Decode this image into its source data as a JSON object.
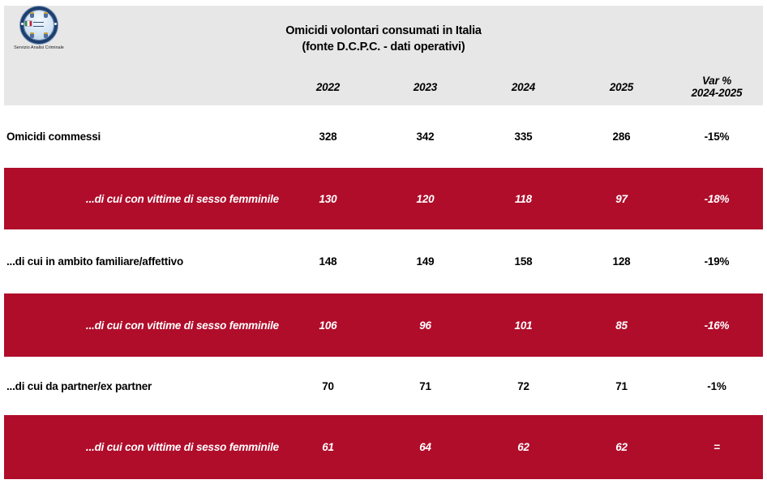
{
  "logo": {
    "caption": "Servizio Analisi Criminale"
  },
  "header": {
    "title_line1": "Omicidi volontari consumati in Italia",
    "title_line2": "(fonte D.C.P.C. - dati operativi)"
  },
  "table": {
    "columns": [
      "2022",
      "2023",
      "2024",
      "2025"
    ],
    "var_header": {
      "line1": "Var %",
      "line2": "2024-2025"
    },
    "rows": [
      {
        "label": "Omicidi commessi",
        "values": [
          "328",
          "342",
          "335",
          "286",
          "-15%"
        ]
      },
      {
        "label": "...di cui con vittime di sesso femminile",
        "values": [
          "130",
          "120",
          "118",
          "97",
          "-18%"
        ]
      },
      {
        "label": "...di cui in ambito familiare/affettivo",
        "values": [
          "148",
          "149",
          "158",
          "128",
          "-19%"
        ]
      },
      {
        "label": "...di cui con vittime di sesso femminile",
        "values": [
          "106",
          "96",
          "101",
          "85",
          "-16%"
        ]
      },
      {
        "label": "...di cui da partner/ex partner",
        "values": [
          "70",
          "71",
          "72",
          "71",
          "-1%"
        ]
      },
      {
        "label": "...di cui con vittime di sesso femminile",
        "values": [
          "61",
          "64",
          "62",
          "62",
          "="
        ]
      }
    ]
  },
  "colors": {
    "highlight_red": "#b00d2b",
    "header_gray": "#e7e7e7"
  }
}
